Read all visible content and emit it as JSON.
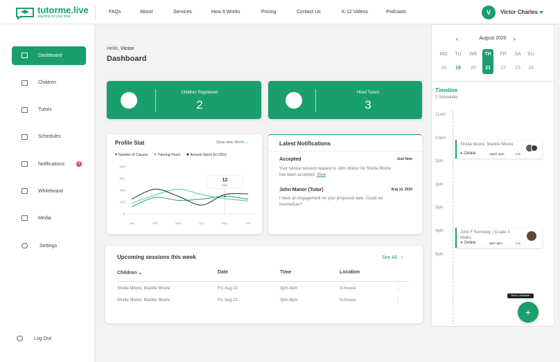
{
  "header": {
    "logo": "tutorme.live",
    "tagline": "learning on your time",
    "nav": [
      "FAQs",
      "About",
      "Services",
      "How It Works",
      "Pricing",
      "Contact Us",
      "K-12 Videos",
      "Podcasts"
    ],
    "user": {
      "initial": "V",
      "name": "Victor Charles"
    }
  },
  "sidebar": {
    "items": [
      "Dashboard",
      "Children",
      "Tutors",
      "Schedules",
      "Notifications",
      "Whiteboard",
      "Media",
      "Settings"
    ],
    "notification_count": 4,
    "logout": "Log Out"
  },
  "greeting": {
    "hello": "Hello,",
    "name": "Victor",
    "title": "Dashboard"
  },
  "stats": [
    {
      "label": "Children Registered",
      "value": 2
    },
    {
      "label": "Hired Tutors",
      "value": 3
    }
  ],
  "profile_stat": {
    "title": "Profile Stat",
    "show_data_label": "Show data:",
    "show_data_value": "Month",
    "tooltip": {
      "day": 12,
      "month": "May"
    },
    "chart_data": {
      "type": "line",
      "categories": [
        "Jan",
        "Feb",
        "Mar",
        "Apr",
        "May",
        "Jun"
      ],
      "series": [
        {
          "name": "Number of Classes",
          "color": "#1a9e6e",
          "values": [
            120,
            280,
            230,
            250,
            300,
            250
          ]
        },
        {
          "name": "Tutoring Hours",
          "color": "#3ec9a7",
          "values": [
            180,
            320,
            420,
            330,
            260,
            220
          ]
        },
        {
          "name": "Amount Spent (in USD)",
          "color": "#222222",
          "values": [
            250,
            420,
            300,
            150,
            330,
            340
          ]
        }
      ],
      "ylim": [
        0,
        800
      ],
      "yticks": [
        0,
        200,
        400,
        600,
        800
      ],
      "grid": false
    }
  },
  "notifications": {
    "title": "Latest Notifications",
    "items": [
      {
        "title": "Accepted",
        "time": "Just Now",
        "text": "Your tutorial session request to John Manor for Sheila Moore has been accepted.",
        "link": "View"
      },
      {
        "title": "John Manor (Tutor)",
        "time": "Aug 10, 2020",
        "text": "I have an engagement on your proposed date. Could we reschedule?"
      }
    ]
  },
  "sessions": {
    "title": "Upcoming sessions this week",
    "see_all": "See All",
    "headers": [
      "Children",
      "Date",
      "Time",
      "Location"
    ],
    "rows": [
      [
        "Sheila Moore, Mackle Moore",
        "Fri, Aug 22",
        "3pm-4pm",
        "In-house"
      ],
      [
        "Sheila Moore, Mackle Moore",
        "Fri, Aug 22",
        "3pm-4pm",
        "In-house"
      ]
    ]
  },
  "calendar": {
    "month": "August 2020",
    "weekdays": [
      "MO",
      "TU",
      "WE",
      "TH",
      "FR",
      "SA",
      "SU"
    ],
    "dates": [
      18,
      19,
      20,
      21,
      22,
      23,
      24
    ]
  },
  "timeline": {
    "title": "Timeline",
    "count": "2 Schedules",
    "hours": [
      "11am",
      "12pm",
      "1pm",
      "2pm",
      "3pm",
      "4pm",
      "5pm"
    ],
    "events": [
      {
        "title": "Sheila Moore, Mackle Moore",
        "mode": "Online",
        "time": "12pm-1pm",
        "link": "Link"
      },
      {
        "title": "John F Kennedy, | Grade 3 Maths",
        "mode": "Online",
        "time": "3pm-4pm",
        "link": "Link"
      }
    ]
  },
  "fab": {
    "tooltip": "Book a Schedule",
    "icon": "+"
  }
}
